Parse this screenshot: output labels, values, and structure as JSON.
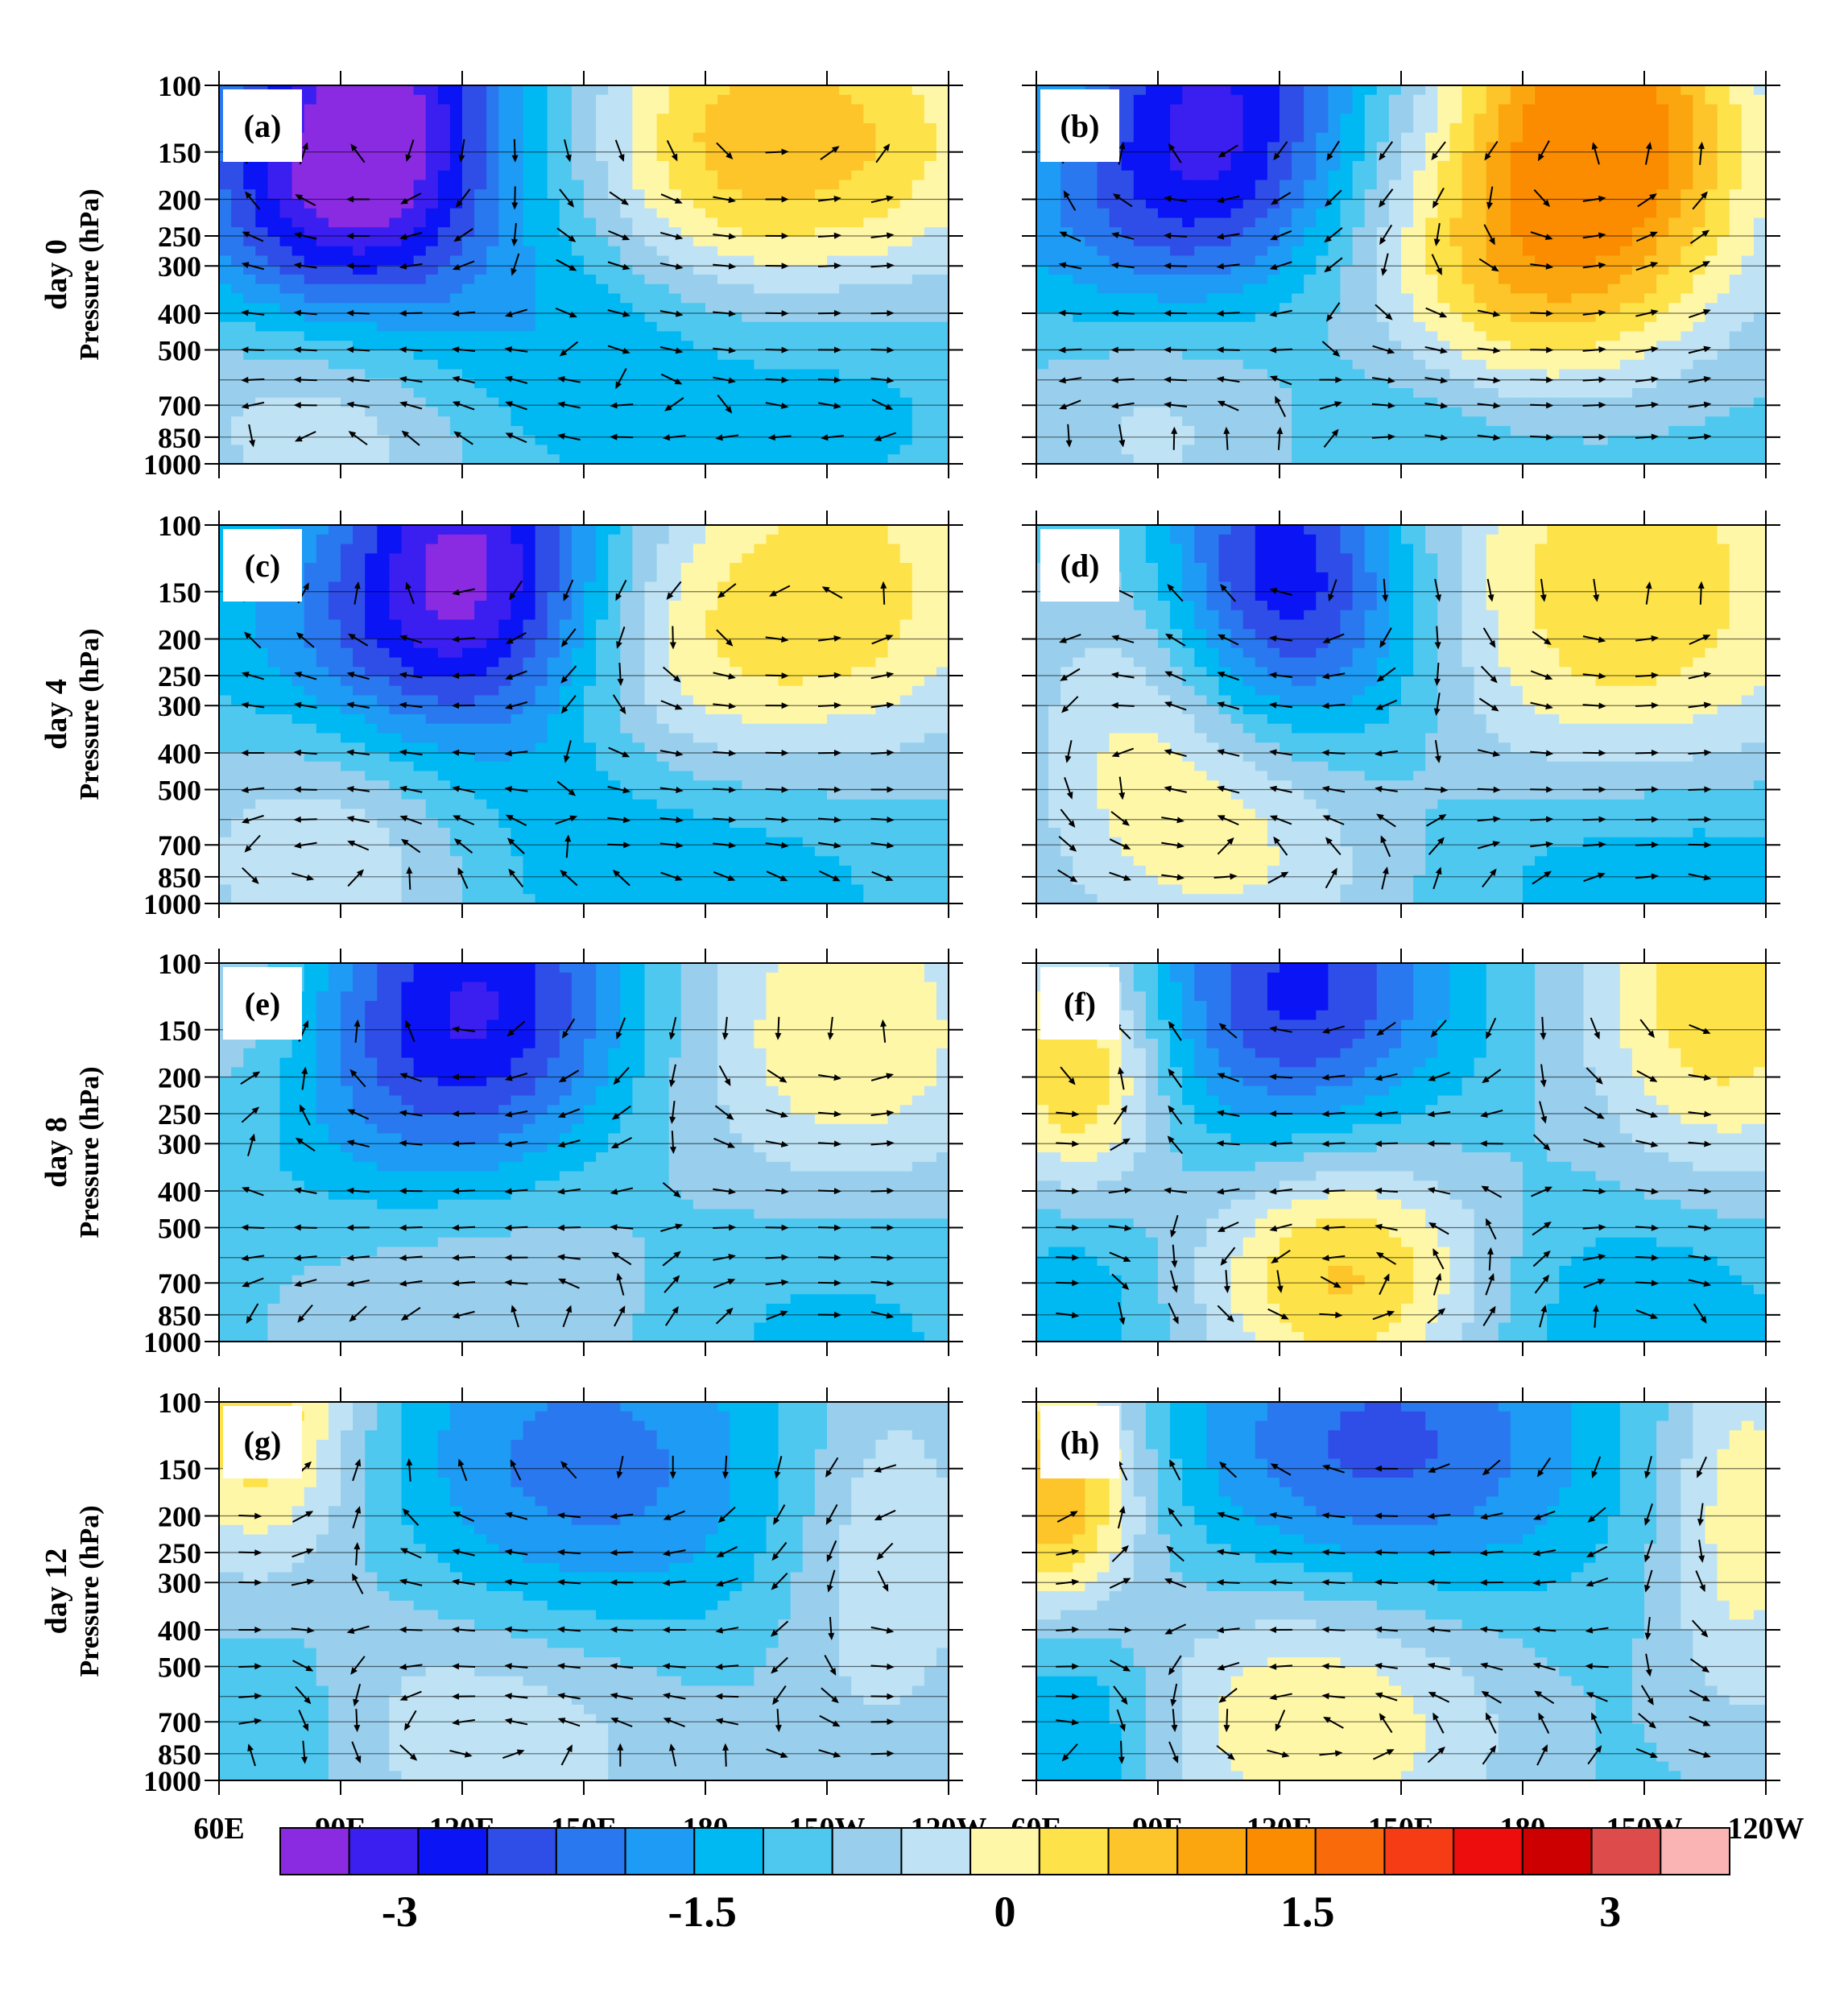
{
  "chart_data": {
    "type": "heatmap",
    "title": "",
    "xlabel": "",
    "ylabel": "Pressure (hPa)",
    "x_tick_labels": [
      "60E",
      "90E",
      "120E",
      "150E",
      "180",
      "150W",
      "120W"
    ],
    "x_tick_values_deg_east": [
      60,
      90,
      120,
      150,
      180,
      210,
      240
    ],
    "xlim_deg_east": [
      60,
      240
    ],
    "y_tick_labels": [
      "100",
      "150",
      "200",
      "250",
      "300",
      "400",
      "500",
      "700",
      "850",
      "1000"
    ],
    "y_tick_values_hpa": [
      100,
      150,
      200,
      250,
      300,
      400,
      500,
      700,
      850,
      1000
    ],
    "ylim_hpa": [
      1000,
      100
    ],
    "y_scale": "log",
    "overlay": "streamlines (zonal wind and vertical velocity)",
    "row_labels": [
      "day 0",
      "day 4",
      "day 8",
      "day 12"
    ],
    "colorbar": {
      "levels": [
        -3.25,
        -2.75,
        -2.25,
        -1.75,
        -1.25,
        -0.75,
        -0.25,
        0.25,
        0.75,
        1.25,
        1.75,
        2.25,
        2.75,
        3.25
      ],
      "tick_labels": [
        "-3",
        "-1.5",
        "0",
        "1.5",
        "3"
      ],
      "tick_values": [
        -3,
        -1.5,
        0,
        1.5,
        3
      ],
      "colors": [
        "#8a2be2",
        "#3b1ef0",
        "#0a14f5",
        "#2f4ee8",
        "#2a78ef",
        "#1e9bf5",
        "#00b8f2",
        "#4fc8f0",
        "#99cfed",
        "#bfe3f5",
        "#fff7a8",
        "#fde24a",
        "#fdc52a",
        "#fca60f",
        "#fb8c00",
        "#f96a0a",
        "#f53c14",
        "#ee0d0d",
        "#cc0000",
        "#dd4b4b",
        "#fbb4b4"
      ]
    },
    "panels": [
      {
        "label": "(a)",
        "row": 0,
        "col": 0,
        "anomalies": [
          {
            "lon": 100,
            "p": 110,
            "value": -3.0,
            "slon": 22,
            "slogp": 0.35
          },
          {
            "lon": 82,
            "p": 200,
            "value": -1.8,
            "slon": 25,
            "slogp": 0.25
          },
          {
            "lon": 150,
            "p": 500,
            "value": -1.0,
            "slon": 40,
            "slogp": 0.25
          },
          {
            "lon": 215,
            "p": 150,
            "value": 2.2,
            "slon": 32,
            "slogp": 0.35
          },
          {
            "lon": 178,
            "p": 150,
            "value": 1.2,
            "slon": 22,
            "slogp": 0.3
          },
          {
            "lon": 90,
            "p": 700,
            "value": 1.4,
            "slon": 30,
            "slogp": 0.25
          },
          {
            "lon": 220,
            "p": 500,
            "value": -0.6,
            "slon": 25,
            "slogp": 0.25
          }
        ]
      },
      {
        "label": "(b)",
        "row": 0,
        "col": 1,
        "anomalies": [
          {
            "lon": 105,
            "p": 110,
            "value": -2.6,
            "slon": 24,
            "slogp": 0.35
          },
          {
            "lon": 85,
            "p": 250,
            "value": -1.3,
            "slon": 30,
            "slogp": 0.25
          },
          {
            "lon": 200,
            "p": 110,
            "value": 3.0,
            "slon": 25,
            "slogp": 0.3
          },
          {
            "lon": 190,
            "p": 250,
            "value": 1.8,
            "slon": 35,
            "slogp": 0.3
          },
          {
            "lon": 175,
            "p": 450,
            "value": 1.0,
            "slon": 25,
            "slogp": 0.25
          },
          {
            "lon": 95,
            "p": 600,
            "value": 1.3,
            "slon": 30,
            "slogp": 0.3
          },
          {
            "lon": 160,
            "p": 750,
            "value": -0.9,
            "slon": 35,
            "slogp": 0.2
          }
        ]
      },
      {
        "label": "(c)",
        "row": 1,
        "col": 0,
        "anomalies": [
          {
            "lon": 122,
            "p": 120,
            "value": -3.0,
            "slon": 22,
            "slogp": 0.3
          },
          {
            "lon": 95,
            "p": 220,
            "value": -1.3,
            "slon": 30,
            "slogp": 0.25
          },
          {
            "lon": 215,
            "p": 150,
            "value": 2.0,
            "slon": 30,
            "slogp": 0.35
          },
          {
            "lon": 175,
            "p": 250,
            "value": 1.0,
            "slon": 22,
            "slogp": 0.3
          },
          {
            "lon": 90,
            "p": 650,
            "value": 1.4,
            "slon": 30,
            "slogp": 0.3
          },
          {
            "lon": 170,
            "p": 700,
            "value": -1.0,
            "slon": 40,
            "slogp": 0.25
          }
        ]
      },
      {
        "label": "(d)",
        "row": 1,
        "col": 1,
        "anomalies": [
          {
            "lon": 120,
            "p": 130,
            "value": -2.5,
            "slon": 20,
            "slogp": 0.3
          },
          {
            "lon": 140,
            "p": 250,
            "value": -1.0,
            "slon": 22,
            "slogp": 0.3
          },
          {
            "lon": 205,
            "p": 150,
            "value": 2.2,
            "slon": 40,
            "slogp": 0.4
          },
          {
            "lon": 115,
            "p": 600,
            "value": 1.6,
            "slon": 30,
            "slogp": 0.3
          },
          {
            "lon": 80,
            "p": 300,
            "value": 0.8,
            "slon": 18,
            "slogp": 0.35
          },
          {
            "lon": 210,
            "p": 750,
            "value": -0.9,
            "slon": 40,
            "slogp": 0.2
          }
        ]
      },
      {
        "label": "(e)",
        "row": 2,
        "col": 0,
        "anomalies": [
          {
            "lon": 125,
            "p": 120,
            "value": -2.4,
            "slon": 25,
            "slogp": 0.3
          },
          {
            "lon": 105,
            "p": 250,
            "value": -1.0,
            "slon": 30,
            "slogp": 0.3
          },
          {
            "lon": 215,
            "p": 170,
            "value": 1.8,
            "slon": 30,
            "slogp": 0.4
          },
          {
            "lon": 65,
            "p": 120,
            "value": 0.9,
            "slon": 15,
            "slogp": 0.25
          },
          {
            "lon": 120,
            "p": 650,
            "value": 1.0,
            "slon": 35,
            "slogp": 0.3
          },
          {
            "lon": 210,
            "p": 650,
            "value": -0.8,
            "slon": 30,
            "slogp": 0.3
          }
        ]
      },
      {
        "label": "(f)",
        "row": 2,
        "col": 1,
        "anomalies": [
          {
            "lon": 125,
            "p": 120,
            "value": -2.4,
            "slon": 25,
            "slogp": 0.3
          },
          {
            "lon": 70,
            "p": 200,
            "value": 2.4,
            "slon": 15,
            "slogp": 0.25
          },
          {
            "lon": 135,
            "p": 650,
            "value": 2.4,
            "slon": 25,
            "slogp": 0.25
          },
          {
            "lon": 230,
            "p": 120,
            "value": 2.2,
            "slon": 25,
            "slogp": 0.35
          },
          {
            "lon": 70,
            "p": 700,
            "value": -0.8,
            "slon": 15,
            "slogp": 0.25
          },
          {
            "lon": 210,
            "p": 800,
            "value": -0.8,
            "slon": 25,
            "slogp": 0.2
          }
        ]
      },
      {
        "label": "(g)",
        "row": 3,
        "col": 0,
        "anomalies": [
          {
            "lon": 70,
            "p": 110,
            "value": 2.2,
            "slon": 18,
            "slogp": 0.3
          },
          {
            "lon": 150,
            "p": 170,
            "value": -1.6,
            "slon": 35,
            "slogp": 0.35
          },
          {
            "lon": 130,
            "p": 650,
            "value": 1.3,
            "slon": 40,
            "slogp": 0.3
          },
          {
            "lon": 225,
            "p": 250,
            "value": 1.2,
            "slon": 18,
            "slogp": 0.4
          },
          {
            "lon": 75,
            "p": 700,
            "value": -0.6,
            "slon": 15,
            "slogp": 0.25
          }
        ]
      },
      {
        "label": "(h)",
        "row": 3,
        "col": 1,
        "anomalies": [
          {
            "lon": 65,
            "p": 180,
            "value": 3.0,
            "slon": 15,
            "slogp": 0.25
          },
          {
            "lon": 145,
            "p": 140,
            "value": -2.0,
            "slon": 35,
            "slogp": 0.3
          },
          {
            "lon": 130,
            "p": 650,
            "value": 1.8,
            "slon": 35,
            "slogp": 0.3
          },
          {
            "lon": 235,
            "p": 200,
            "value": 1.6,
            "slon": 15,
            "slogp": 0.4
          },
          {
            "lon": 70,
            "p": 650,
            "value": -1.2,
            "slon": 15,
            "slogp": 0.3
          }
        ]
      }
    ]
  }
}
